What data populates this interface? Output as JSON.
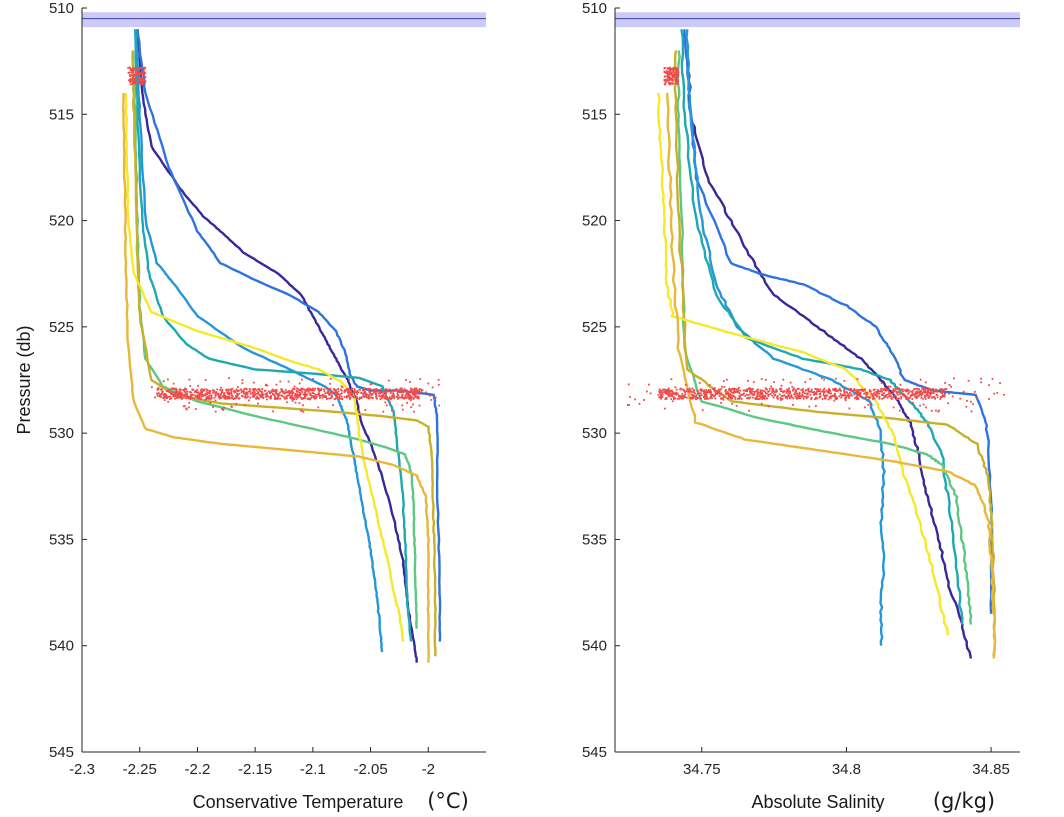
{
  "chart_data": [
    {
      "type": "line",
      "panel": "left",
      "xlabel": "Conservative Temperature",
      "xunit": "(°C)",
      "ylabel": "Pressure (db)",
      "xlim": [
        -2.3,
        -1.95
      ],
      "ylim": [
        545,
        510
      ],
      "y_reversed": true,
      "xticks": [
        -2.3,
        -2.25,
        -2.2,
        -2.15,
        -2.1,
        -2.05,
        -2
      ],
      "xtick_labels": [
        "-2.3",
        "-2.25",
        "-2.2",
        "-2.15",
        "-2.1",
        "-2.05",
        "-2"
      ],
      "yticks": [
        510,
        515,
        520,
        525,
        530,
        535,
        540,
        545
      ],
      "band": {
        "y_range": [
          510.2,
          510.9
        ],
        "line_y": 510.5,
        "fill": "#c8c8f5",
        "line": "#3c3ca0"
      },
      "series": [
        {
          "color": "#38299a",
          "x": [
            -2.252,
            -2.248,
            -2.24,
            -2.215,
            -2.195,
            -2.18,
            -2.16,
            -2.13,
            -2.11,
            -2.1,
            -2.09,
            -2.08,
            -2.07,
            -2.062,
            -2.058,
            -2.05,
            -2.04,
            -2.03,
            -2.022,
            -2.018,
            -2.012,
            -2.01
          ],
          "y": [
            511,
            514,
            516.5,
            518.5,
            519.8,
            520.5,
            521.5,
            522.5,
            523.5,
            524.5,
            525.5,
            526.5,
            527.5,
            528.5,
            529.5,
            530.5,
            532,
            534,
            536,
            538,
            540,
            540.8
          ]
        },
        {
          "color": "#2f73dc",
          "x": [
            -2.252,
            -2.245,
            -2.225,
            -2.2,
            -2.18,
            -2.15,
            -2.12,
            -2.095,
            -2.08,
            -2.072,
            -2.068,
            -2.062,
            -2.05,
            -2.025,
            -1.995,
            -1.992,
            -1.992,
            -1.99,
            -1.99
          ],
          "y": [
            511,
            514,
            517.5,
            520.5,
            522,
            522.8,
            523.5,
            524.3,
            525.2,
            526.2,
            527.2,
            527.8,
            528,
            528,
            528.2,
            529.5,
            533,
            537,
            539.8
          ]
        },
        {
          "color": "#2596d8",
          "x": [
            -2.253,
            -2.25,
            -2.245,
            -2.235,
            -2.22,
            -2.2,
            -2.16,
            -2.12,
            -2.09,
            -2.08,
            -2.075,
            -2.07,
            -2.065,
            -2.06,
            -2.055,
            -2.05,
            -2.045,
            -2.042,
            -2.04
          ],
          "y": [
            511,
            515,
            520,
            522,
            523,
            524.5,
            526,
            527,
            527.8,
            528.2,
            528.8,
            529.5,
            531,
            532.5,
            534,
            535.5,
            537.5,
            539,
            540.3
          ]
        },
        {
          "color": "#1fa8b0",
          "x": [
            -2.254,
            -2.252,
            -2.248,
            -2.242,
            -2.23,
            -2.21,
            -2.19,
            -2.15,
            -2.1,
            -2.06,
            -2.04,
            -2.03,
            -2.026,
            -2.022,
            -2.02,
            -2.018,
            -2.015
          ],
          "y": [
            511,
            515,
            520,
            522.5,
            524.5,
            525.8,
            526.5,
            527,
            527.2,
            527.4,
            527.8,
            529,
            531,
            533,
            535,
            538,
            539.8
          ]
        },
        {
          "color": "#5fc784",
          "x": [
            -2.256,
            -2.254,
            -2.252,
            -2.25,
            -2.245,
            -2.23,
            -2.2,
            -2.15,
            -2.1,
            -2.06,
            -2.035,
            -2.02,
            -2.015,
            -2.013,
            -2.012,
            -2.011,
            -2.01
          ],
          "y": [
            512,
            515,
            520,
            524,
            526.5,
            527.8,
            528.5,
            529.2,
            529.8,
            530.3,
            530.7,
            531,
            531.8,
            533,
            535,
            537,
            539.2
          ]
        },
        {
          "color": "#c9b02a",
          "x": [
            -2.256,
            -2.255,
            -2.253,
            -2.25,
            -2.24,
            -2.22,
            -2.18,
            -2.13,
            -2.08,
            -2.04,
            -2.01,
            -2.0,
            -1.997,
            -1.996,
            -1.995,
            -1.994,
            -1.994
          ],
          "y": [
            512,
            515,
            520,
            524.5,
            527.5,
            528.2,
            528.6,
            528.8,
            529,
            529.2,
            529.4,
            529.7,
            531,
            533,
            535,
            538,
            540.5
          ]
        },
        {
          "color": "#f5e92a",
          "x": [
            -2.262,
            -2.261,
            -2.26,
            -2.255,
            -2.24,
            -2.2,
            -2.15,
            -2.12,
            -2.095,
            -2.075,
            -2.065,
            -2.062,
            -2.06,
            -2.055,
            -2.048,
            -2.042,
            -2.035,
            -2.03,
            -2.025,
            -2.022
          ],
          "y": [
            514,
            517,
            520,
            522.5,
            524.3,
            525.2,
            526,
            526.6,
            527,
            527.6,
            528.2,
            529,
            530,
            531.5,
            533,
            534.5,
            536,
            537.5,
            538.5,
            539.8
          ]
        },
        {
          "color": "#e8b73c",
          "x": [
            -2.264,
            -2.263,
            -2.262,
            -2.26,
            -2.255,
            -2.245,
            -2.22,
            -2.18,
            -2.12,
            -2.06,
            -2.03,
            -2.01,
            -2.002,
            -2.0,
            -2.0,
            -2.0
          ],
          "y": [
            514,
            518,
            522,
            526,
            528.5,
            529.8,
            530.2,
            530.5,
            530.8,
            531.1,
            531.5,
            532,
            533,
            535,
            538,
            540.8
          ]
        }
      ],
      "scatter_groups": [
        {
          "color": "#f04a4a",
          "x_range": [
            -2.26,
            -2.245
          ],
          "y_range": [
            512.8,
            513.6
          ],
          "n": 120
        },
        {
          "color": "#f04a4a",
          "x_range": [
            -2.235,
            -2.005
          ],
          "y_range": [
            527.9,
            528.4
          ],
          "n": 900
        },
        {
          "color": "#f04a4a",
          "x_range": [
            -2.24,
            -1.99
          ],
          "y_range": [
            527.4,
            529.0
          ],
          "n": 140
        }
      ]
    },
    {
      "type": "line",
      "panel": "right",
      "xlabel": "Absolute Salinity",
      "xunit": "(g/kg)",
      "ylabel": "",
      "xlim": [
        34.72,
        34.86
      ],
      "ylim": [
        545,
        510
      ],
      "y_reversed": true,
      "xticks": [
        34.75,
        34.8,
        34.85
      ],
      "xtick_labels": [
        "34.75",
        "34.8",
        "34.85"
      ],
      "yticks": [
        510,
        515,
        520,
        525,
        530,
        535,
        540,
        545
      ],
      "band": {
        "y_range": [
          510.2,
          510.9
        ],
        "line_y": 510.5,
        "fill": "#c8c8f5",
        "line": "#3c3ca0"
      },
      "series": [
        {
          "color": "#38299a",
          "x": [
            34.745,
            34.746,
            34.752,
            34.76,
            34.768,
            34.775,
            34.785,
            34.795,
            34.805,
            34.812,
            34.818,
            34.822,
            34.825,
            34.828,
            34.832,
            34.835,
            34.84,
            34.843
          ],
          "y": [
            512,
            515,
            518,
            520,
            522,
            523.5,
            524.5,
            525.5,
            526.5,
            527.5,
            528.5,
            529.5,
            531,
            533,
            535,
            537,
            539,
            540.6
          ]
        },
        {
          "color": "#2f73dc",
          "x": [
            34.744,
            34.746,
            34.748,
            34.76,
            34.77,
            34.785,
            34.8,
            34.81,
            34.815,
            34.82,
            34.83,
            34.845,
            34.849,
            34.85,
            34.85
          ],
          "y": [
            511,
            514,
            518,
            522,
            522.5,
            523,
            524,
            525,
            526,
            527.5,
            528,
            528.2,
            530,
            534,
            538.5
          ]
        },
        {
          "color": "#2596d8",
          "x": [
            34.745,
            34.746,
            34.75,
            34.755,
            34.762,
            34.775,
            34.795,
            34.808,
            34.812,
            34.813,
            34.812,
            34.813,
            34.812,
            34.812
          ],
          "y": [
            511,
            515,
            520,
            523,
            525,
            526.5,
            527.5,
            528.5,
            530,
            532,
            534,
            536,
            538,
            540
          ]
        },
        {
          "color": "#1fa8b0",
          "x": [
            34.743,
            34.744,
            34.748,
            34.755,
            34.765,
            34.785,
            34.805,
            34.815,
            34.822,
            34.828,
            34.833,
            34.835,
            34.838,
            34.84
          ],
          "y": [
            511,
            515,
            520,
            523.5,
            525.5,
            526.5,
            527,
            527.5,
            528.5,
            529.5,
            531,
            533,
            536,
            539
          ]
        },
        {
          "color": "#5fc784",
          "x": [
            34.742,
            34.742,
            34.743,
            34.744,
            34.75,
            34.77,
            34.795,
            34.815,
            34.828,
            34.833,
            34.838,
            34.84,
            34.842,
            34.843
          ],
          "y": [
            512,
            515,
            520,
            526,
            528.5,
            529.3,
            530,
            530.5,
            531,
            531.5,
            533,
            535,
            537,
            539
          ]
        },
        {
          "color": "#c9b02a",
          "x": [
            34.741,
            34.741,
            34.742,
            34.745,
            34.76,
            34.79,
            34.815,
            34.835,
            34.845,
            34.849,
            34.85,
            34.851,
            34.851
          ],
          "y": [
            512,
            515,
            520,
            527,
            528.5,
            529,
            529.3,
            529.6,
            530.5,
            532,
            534,
            537,
            540.5
          ]
        },
        {
          "color": "#f5e92a",
          "x": [
            34.735,
            34.736,
            34.737,
            34.738,
            34.74,
            34.76,
            34.785,
            34.8,
            34.81,
            34.816,
            34.82,
            34.825,
            34.83,
            34.835
          ],
          "y": [
            514,
            517,
            520,
            523,
            524.5,
            525.3,
            526.2,
            527,
            528.5,
            530,
            532,
            534,
            536.5,
            539.5
          ]
        },
        {
          "color": "#e8b73c",
          "x": [
            34.738,
            34.739,
            34.74,
            34.742,
            34.748,
            34.765,
            34.79,
            34.815,
            34.835,
            34.845,
            34.849,
            34.85,
            34.851,
            34.851
          ],
          "y": [
            514,
            518,
            522,
            526,
            529.5,
            530.3,
            530.8,
            531.3,
            531.8,
            532.5,
            534,
            536,
            538.5,
            540.6
          ]
        }
      ],
      "scatter_groups": [
        {
          "color": "#f04a4a",
          "x_range": [
            34.737,
            34.742
          ],
          "y_range": [
            512.8,
            513.6
          ],
          "n": 120
        },
        {
          "color": "#f04a4a",
          "x_range": [
            34.735,
            34.835
          ],
          "y_range": [
            527.9,
            528.4
          ],
          "n": 900
        },
        {
          "color": "#f04a4a",
          "x_range": [
            34.722,
            34.855
          ],
          "y_range": [
            527.4,
            529.0
          ],
          "n": 140
        }
      ]
    }
  ]
}
